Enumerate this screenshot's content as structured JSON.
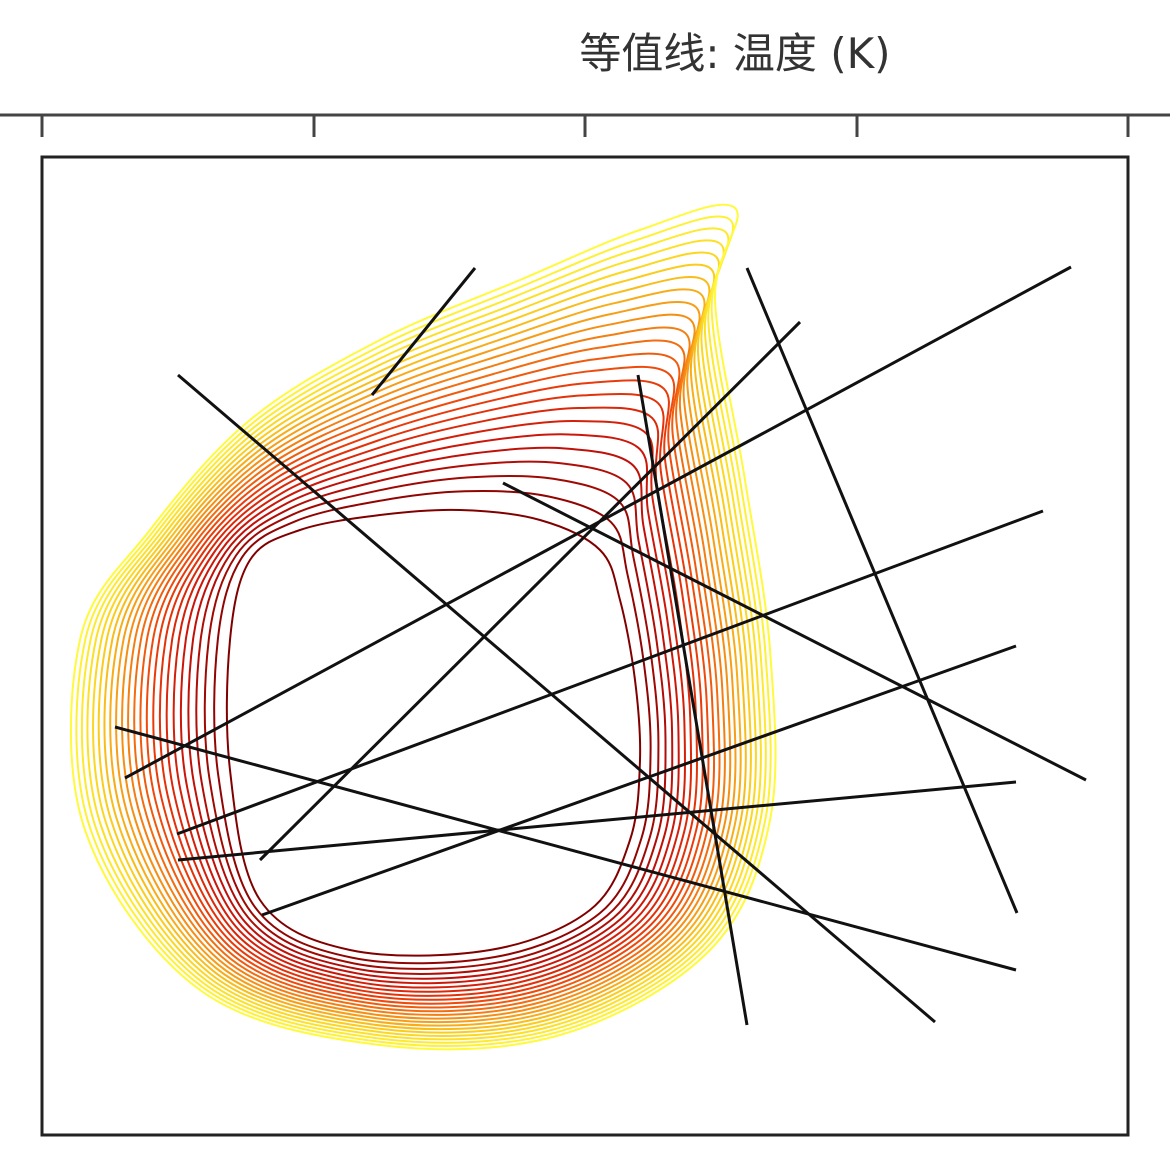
{
  "header": {
    "title": "等值线: 温度 (K)"
  }
}
